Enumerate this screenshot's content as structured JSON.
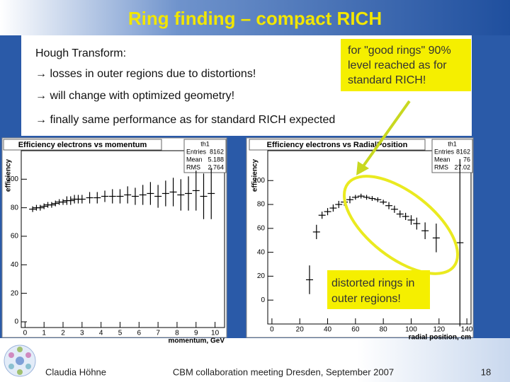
{
  "slide": {
    "title": "Ring finding – compact RICH",
    "bullets": [
      "Hough Transform:",
      "→ losses in outer regions due to distortions!",
      "→ will change with optimized geometry!",
      "→ finally same performance as for standard RICH expected"
    ],
    "callouts": [
      [
        "for \"good rings\" 90%",
        "level reached as for",
        "standard RICH!"
      ],
      [
        "distorted rings in",
        "outer regions!"
      ]
    ],
    "footer": {
      "author": "Claudia Höhne",
      "event": "CBM collaboration meeting Dresden, September 2007",
      "page": "18"
    }
  },
  "chart_data": [
    {
      "type": "scatter",
      "title": "Efficiency electrons vs momentum",
      "x_label": "momentum, GeV",
      "y_label": "efficiency",
      "stats": {
        "title": "th1",
        "rows": [
          {
            "label": "Entries",
            "value": 8162
          },
          {
            "label": "Mean",
            "value": 5.188
          },
          {
            "label": "RMS",
            "value": 2.764
          }
        ]
      },
      "color": "#000000",
      "xlim": [
        -0.2,
        10.5
      ],
      "xticks": [
        0,
        1,
        2,
        3,
        4,
        5,
        6,
        7,
        8,
        9,
        10
      ],
      "ylim": [
        -4,
        120
      ],
      "yticks": [
        0,
        20,
        40,
        60,
        80,
        100
      ],
      "x": [
        0.4,
        0.6,
        0.8,
        1.0,
        1.2,
        1.4,
        1.6,
        1.8,
        2.0,
        2.2,
        2.4,
        2.6,
        2.8,
        3.0,
        3.4,
        3.8,
        4.2,
        4.6,
        5.0,
        5.4,
        5.8,
        6.2,
        6.6,
        7.0,
        7.4,
        7.8,
        8.2,
        8.6,
        9.0,
        9.4,
        9.8
      ],
      "values": [
        79,
        80,
        80,
        81,
        82,
        82,
        83,
        84,
        84,
        85,
        85,
        86,
        86,
        86,
        87,
        87,
        88,
        88,
        88,
        89,
        88,
        89,
        90,
        88,
        90,
        91,
        89,
        90,
        92,
        88,
        90
      ],
      "errors": [
        2,
        2,
        2,
        2,
        2,
        2,
        2,
        2,
        2,
        3,
        3,
        3,
        3,
        3,
        4,
        4,
        4,
        5,
        5,
        6,
        6,
        7,
        8,
        8,
        9,
        10,
        11,
        12,
        14,
        16,
        18
      ]
    },
    {
      "type": "scatter",
      "title": "Efficiency electrons vs RadialPosition",
      "x_label": "radial position, cm",
      "y_label": "efficiency",
      "stats": {
        "title": "th1",
        "rows": [
          {
            "label": "Entries",
            "value": 8162
          },
          {
            "label": "Mean",
            "value": 76
          },
          {
            "label": "RMS",
            "value": 27.02
          }
        ]
      },
      "color": "#000000",
      "xlim": [
        -3,
        143
      ],
      "xticks": [
        0,
        20,
        40,
        60,
        80,
        100,
        120,
        140
      ],
      "ylim": [
        -20,
        125
      ],
      "yticks": [
        0,
        20,
        40,
        60,
        80,
        100
      ],
      "x": [
        27,
        32,
        36,
        40,
        44,
        48,
        52,
        56,
        60,
        64,
        68,
        72,
        76,
        80,
        84,
        88,
        92,
        96,
        100,
        104,
        110,
        118,
        135
      ],
      "values": [
        17,
        57,
        71,
        74,
        77,
        80,
        82,
        84,
        86,
        87,
        86,
        85,
        84,
        82,
        79,
        76,
        72,
        70,
        67,
        64,
        58,
        52,
        48
      ],
      "errors": [
        12,
        6,
        3,
        3,
        3,
        3,
        3,
        3,
        2,
        2,
        2,
        2,
        2,
        2,
        3,
        3,
        3,
        3,
        4,
        5,
        7,
        12,
        70
      ]
    }
  ]
}
